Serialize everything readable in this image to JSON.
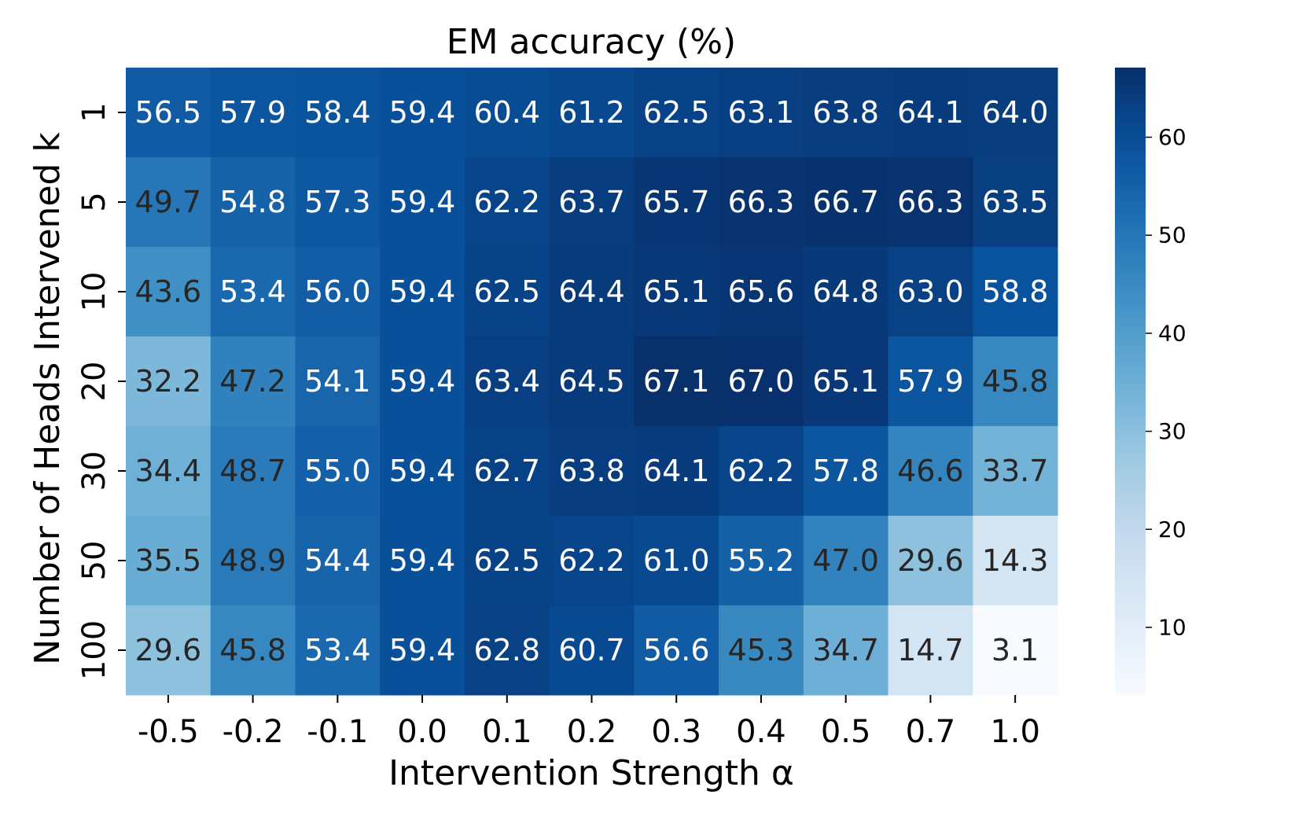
{
  "chart_data": {
    "type": "heatmap",
    "title": "EM accuracy (%)",
    "xlabel": "Intervention Strength α",
    "ylabel": "Number of Heads Intervened k",
    "x": [
      "-0.5",
      "-0.2",
      "-0.1",
      "0.0",
      "0.1",
      "0.2",
      "0.3",
      "0.4",
      "0.5",
      "0.7",
      "1.0"
    ],
    "y": [
      "1",
      "5",
      "10",
      "20",
      "30",
      "50",
      "100"
    ],
    "values": [
      [
        56.5,
        57.9,
        58.4,
        59.4,
        60.4,
        61.2,
        62.5,
        63.1,
        63.8,
        64.1,
        64.0
      ],
      [
        49.7,
        54.8,
        57.3,
        59.4,
        62.2,
        63.7,
        65.7,
        66.3,
        66.7,
        66.3,
        63.5
      ],
      [
        43.6,
        53.4,
        56.0,
        59.4,
        62.5,
        64.4,
        65.1,
        65.6,
        64.8,
        63.0,
        58.8
      ],
      [
        32.2,
        47.2,
        54.1,
        59.4,
        63.4,
        64.5,
        67.1,
        67.0,
        65.1,
        57.9,
        45.8
      ],
      [
        34.4,
        48.7,
        55.0,
        59.4,
        62.7,
        63.8,
        64.1,
        62.2,
        57.8,
        46.6,
        33.7
      ],
      [
        35.5,
        48.9,
        54.4,
        59.4,
        62.5,
        62.2,
        61.0,
        55.2,
        47.0,
        29.6,
        14.3
      ],
      [
        29.6,
        45.8,
        53.4,
        59.4,
        62.8,
        60.7,
        56.6,
        45.3,
        34.7,
        14.7,
        3.1
      ]
    ],
    "value_format": "0.1f",
    "colormap": "Blues",
    "vmin": 3.1,
    "vmax": 67.1,
    "colorbar": {
      "ticks": [
        10,
        20,
        30,
        40,
        50,
        60
      ]
    },
    "text_colors": {
      "light": "#ffffff",
      "dark": "#262626"
    },
    "legend": "colorbar-right",
    "grid": false
  }
}
